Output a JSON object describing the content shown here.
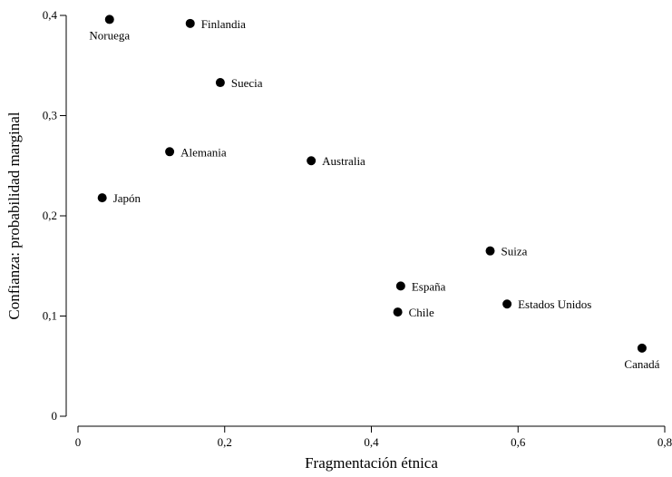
{
  "chart_data": {
    "type": "scatter",
    "xlabel": "Fragmentación étnica",
    "ylabel": "Confianza: probabilidad marginal",
    "xlim": [
      0,
      0.8
    ],
    "ylim": [
      0,
      0.4
    ],
    "x_ticks": [
      {
        "value": 0,
        "label": "0"
      },
      {
        "value": 0.2,
        "label": "0,2"
      },
      {
        "value": 0.4,
        "label": "0,4"
      },
      {
        "value": 0.6,
        "label": "0,6"
      },
      {
        "value": 0.8,
        "label": "0,8"
      }
    ],
    "y_ticks": [
      {
        "value": 0,
        "label": "0"
      },
      {
        "value": 0.1,
        "label": "0,1"
      },
      {
        "value": 0.2,
        "label": "0,2"
      },
      {
        "value": 0.3,
        "label": "0,3"
      },
      {
        "value": 0.4,
        "label": "0,4"
      }
    ],
    "grid": false,
    "points": [
      {
        "label": "Noruega",
        "x": 0.043,
        "y": 0.396,
        "label_pos": "below"
      },
      {
        "label": "Finlandia",
        "x": 0.153,
        "y": 0.392,
        "label_pos": "right"
      },
      {
        "label": "Suecia",
        "x": 0.194,
        "y": 0.333,
        "label_pos": "right"
      },
      {
        "label": "Alemania",
        "x": 0.125,
        "y": 0.264,
        "label_pos": "right"
      },
      {
        "label": "Australia",
        "x": 0.318,
        "y": 0.255,
        "label_pos": "right"
      },
      {
        "label": "Japón",
        "x": 0.033,
        "y": 0.218,
        "label_pos": "right"
      },
      {
        "label": "Suiza",
        "x": 0.562,
        "y": 0.165,
        "label_pos": "right"
      },
      {
        "label": "España",
        "x": 0.44,
        "y": 0.13,
        "label_pos": "right"
      },
      {
        "label": "Estados Unidos",
        "x": 0.585,
        "y": 0.112,
        "label_pos": "right"
      },
      {
        "label": "Chile",
        "x": 0.436,
        "y": 0.104,
        "label_pos": "right"
      },
      {
        "label": "Canadá",
        "x": 0.769,
        "y": 0.068,
        "label_pos": "below"
      }
    ]
  }
}
